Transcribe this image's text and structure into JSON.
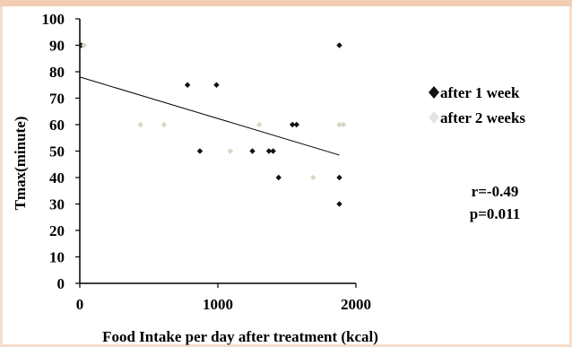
{
  "chart_data": {
    "type": "scatter",
    "xlabel": "Food Intake per day after treatment (kcal)",
    "ylabel": "Tmax(minute)",
    "xlim": [
      0,
      2000
    ],
    "ylim": [
      0,
      100
    ],
    "xticks": [
      "0",
      "1000",
      "2000"
    ],
    "yticks": [
      "0",
      "10",
      "20",
      "30",
      "40",
      "50",
      "60",
      "70",
      "80",
      "90",
      "100"
    ],
    "grid": false,
    "legend_position": "right",
    "series": [
      {
        "name": "after 1 week",
        "marker": "diamond",
        "color": "#111111",
        "points": [
          [
            10,
            90
          ],
          [
            780,
            75
          ],
          [
            990,
            75
          ],
          [
            870,
            50
          ],
          [
            1250,
            50
          ],
          [
            1370,
            50
          ],
          [
            1400,
            50
          ],
          [
            1540,
            60
          ],
          [
            1570,
            60
          ],
          [
            1440,
            40
          ],
          [
            1880,
            90
          ],
          [
            1880,
            40
          ],
          [
            1880,
            30
          ]
        ]
      },
      {
        "name": "after 2 weeks",
        "marker": "diamond",
        "color": "#d6d8c4",
        "points": [
          [
            30,
            90
          ],
          [
            440,
            60
          ],
          [
            610,
            60
          ],
          [
            1090,
            50
          ],
          [
            1300,
            60
          ],
          [
            1690,
            40
          ],
          [
            1880,
            60
          ],
          [
            1910,
            60
          ]
        ]
      }
    ],
    "trendline": {
      "x": [
        0,
        1880
      ],
      "y": [
        78,
        48.5
      ]
    },
    "annotations": [
      "r=-0.49",
      "p=0.011"
    ]
  },
  "legend": {
    "entry1": "after 1 week",
    "entry2": "after 2 weeks"
  },
  "stats": {
    "r": "r=-0.49",
    "p": "p=0.011"
  }
}
